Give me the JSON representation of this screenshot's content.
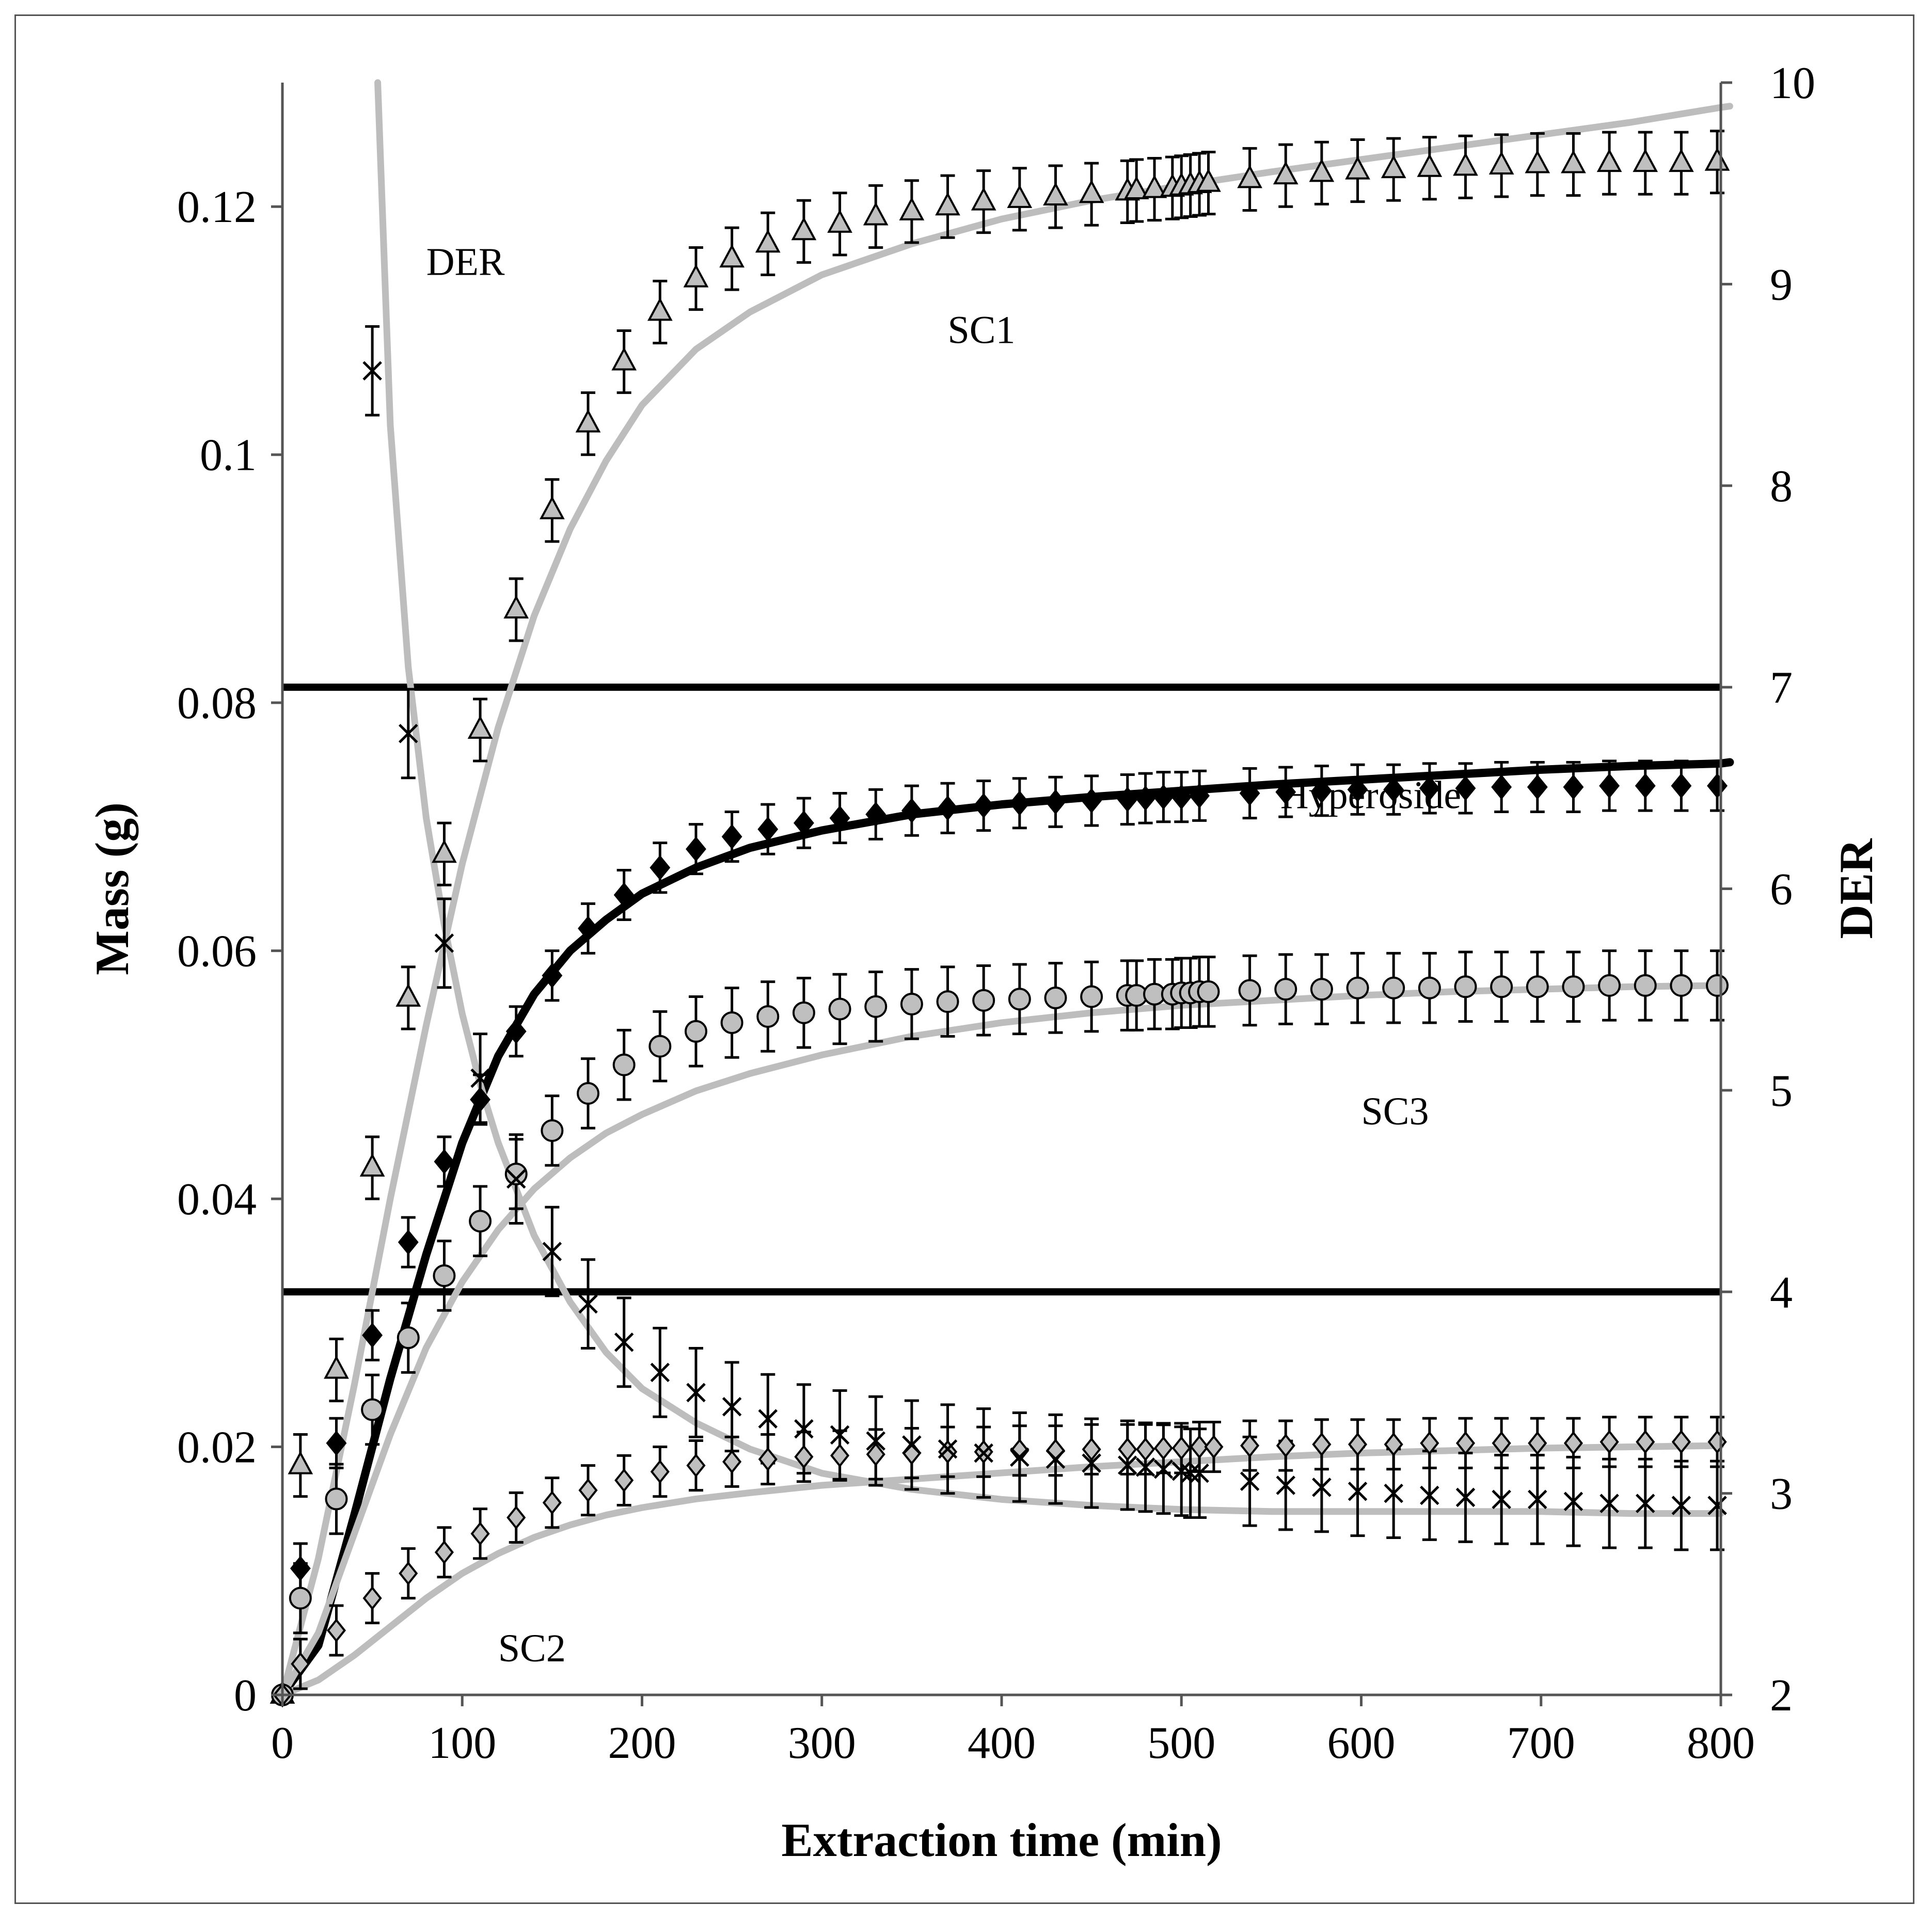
{
  "chart_data": {
    "type": "scatter",
    "title": "",
    "xlabel": "Extraction time (min)",
    "ylabel": "Mass (g)",
    "y2label": "DER",
    "xlim": [
      0,
      800
    ],
    "ylim": [
      0,
      0.13
    ],
    "y2lim": [
      2,
      10
    ],
    "x_ticks": [
      0,
      100,
      200,
      300,
      400,
      500,
      600,
      700,
      800
    ],
    "y_ticks": [
      0,
      0.02,
      0.04,
      0.06,
      0.08,
      0.1,
      0.12
    ],
    "y_tick_labels": [
      "0",
      "0.02",
      "0.04",
      "0.06",
      "0.08",
      "0.1",
      "0.12"
    ],
    "y2_ticks": [
      2,
      3,
      4,
      5,
      6,
      7,
      8,
      9,
      10
    ],
    "grid": false,
    "legend": "none",
    "colors": {
      "black": "#000000",
      "gray": "#bdbdbd",
      "marker_gray": "#bfbfbf",
      "dark_gray": "#555555"
    },
    "annotations": [
      {
        "text": "DER",
        "x": 80,
        "y": 0.1145
      },
      {
        "text": "SC1",
        "x": 370,
        "y": 0.109
      },
      {
        "text": "Hyperoside",
        "x": 555,
        "y": 0.0715
      },
      {
        "text": "SC3",
        "x": 600,
        "y": 0.046
      },
      {
        "text": "SC2",
        "x": 120,
        "y": 0.0027
      }
    ],
    "reference_lines": [
      {
        "axis": "y2",
        "value": 7
      },
      {
        "axis": "y2",
        "value": 4
      }
    ],
    "series": [
      {
        "name": "SC1",
        "marker": "triangle",
        "axis": "y",
        "x": [
          0,
          10,
          30,
          50,
          70,
          90,
          110,
          130,
          150,
          170,
          190,
          210,
          230,
          250,
          270,
          290,
          310,
          330,
          350,
          370,
          390,
          410,
          430,
          450,
          470,
          475,
          485,
          495,
          500,
          505,
          510,
          515,
          538,
          558,
          578,
          598,
          618,
          638,
          658,
          678,
          698,
          718,
          738,
          758,
          778,
          798
        ],
        "values": [
          0,
          0.0185,
          0.0262,
          0.0425,
          0.0562,
          0.0678,
          0.0778,
          0.0875,
          0.0955,
          0.1025,
          0.1075,
          0.1115,
          0.1142,
          0.1158,
          0.117,
          0.118,
          0.1186,
          0.1192,
          0.1196,
          0.12,
          0.1204,
          0.1206,
          0.1208,
          0.121,
          0.1212,
          0.1213,
          0.1214,
          0.1215,
          0.1216,
          0.1217,
          0.1218,
          0.1219,
          0.1222,
          0.1225,
          0.1227,
          0.1229,
          0.123,
          0.1231,
          0.1232,
          0.1233,
          0.1234,
          0.1234,
          0.1235,
          0.1235,
          0.1235,
          0.1236
        ],
        "error": 0.0025
      },
      {
        "name": "Hyperoside",
        "marker": "diamond-filled",
        "axis": "y",
        "x": [
          0,
          10,
          30,
          50,
          70,
          90,
          110,
          130,
          150,
          170,
          190,
          210,
          230,
          250,
          270,
          290,
          310,
          330,
          350,
          370,
          390,
          410,
          430,
          450,
          470,
          480,
          490,
          500,
          510,
          538,
          558,
          578,
          598,
          618,
          638,
          658,
          678,
          698,
          718,
          738,
          758,
          778,
          798
        ],
        "values": [
          0,
          0.0102,
          0.0203,
          0.029,
          0.0365,
          0.043,
          0.048,
          0.0535,
          0.058,
          0.0618,
          0.0645,
          0.0667,
          0.0682,
          0.0692,
          0.0698,
          0.0703,
          0.0707,
          0.071,
          0.0713,
          0.0715,
          0.0717,
          0.0719,
          0.072,
          0.0721,
          0.0722,
          0.0723,
          0.0724,
          0.0724,
          0.0725,
          0.0727,
          0.0728,
          0.0729,
          0.073,
          0.073,
          0.0731,
          0.0731,
          0.0732,
          0.0732,
          0.0732,
          0.0733,
          0.0733,
          0.0733,
          0.0733
        ],
        "error": 0.002
      },
      {
        "name": "SC3",
        "marker": "circle",
        "axis": "y",
        "x": [
          0,
          10,
          30,
          50,
          70,
          90,
          110,
          130,
          150,
          170,
          190,
          210,
          230,
          250,
          270,
          290,
          310,
          330,
          350,
          370,
          390,
          410,
          430,
          450,
          470,
          475,
          485,
          495,
          500,
          505,
          510,
          515,
          538,
          558,
          578,
          598,
          618,
          638,
          658,
          678,
          698,
          718,
          738,
          758,
          778,
          798
        ],
        "values": [
          0,
          0.0078,
          0.0158,
          0.023,
          0.0288,
          0.0338,
          0.0382,
          0.042,
          0.0455,
          0.0485,
          0.0508,
          0.0523,
          0.0535,
          0.0542,
          0.0547,
          0.055,
          0.0553,
          0.0555,
          0.0557,
          0.0559,
          0.056,
          0.0561,
          0.0562,
          0.0563,
          0.0564,
          0.0564,
          0.0565,
          0.0565,
          0.0566,
          0.0566,
          0.0567,
          0.0567,
          0.0568,
          0.0569,
          0.0569,
          0.057,
          0.057,
          0.057,
          0.0571,
          0.0571,
          0.0571,
          0.0571,
          0.0572,
          0.0572,
          0.0572,
          0.0572
        ],
        "error": 0.0028
      },
      {
        "name": "SC2",
        "marker": "diamond-open",
        "axis": "y",
        "x": [
          0,
          10,
          30,
          50,
          70,
          90,
          110,
          130,
          150,
          170,
          190,
          210,
          230,
          250,
          270,
          290,
          310,
          330,
          350,
          370,
          390,
          410,
          430,
          450,
          470,
          480,
          490,
          500,
          510,
          518,
          538,
          558,
          578,
          598,
          618,
          638,
          658,
          678,
          698,
          718,
          738,
          758,
          778,
          798
        ],
        "values": [
          0,
          0.0025,
          0.0052,
          0.0078,
          0.0098,
          0.0115,
          0.013,
          0.0143,
          0.0155,
          0.0165,
          0.0173,
          0.018,
          0.0185,
          0.0188,
          0.019,
          0.0192,
          0.0193,
          0.0194,
          0.0195,
          0.0196,
          0.0196,
          0.0197,
          0.0197,
          0.0198,
          0.0198,
          0.0198,
          0.0199,
          0.0199,
          0.02,
          0.02,
          0.0201,
          0.0201,
          0.0202,
          0.0202,
          0.0202,
          0.0203,
          0.0203,
          0.0203,
          0.0203,
          0.0203,
          0.0204,
          0.0204,
          0.0204,
          0.0204
        ],
        "error": 0.002
      },
      {
        "name": "DER",
        "marker": "x",
        "axis": "y2",
        "x": [
          50,
          70,
          90,
          110,
          130,
          150,
          170,
          190,
          210,
          230,
          250,
          270,
          290,
          310,
          330,
          350,
          370,
          390,
          410,
          430,
          450,
          470,
          480,
          490,
          500,
          505,
          510,
          538,
          558,
          578,
          598,
          618,
          638,
          658,
          678,
          698,
          718,
          738,
          758,
          778,
          798
        ],
        "values": [
          8.57,
          6.77,
          5.73,
          5.06,
          4.56,
          4.2,
          3.94,
          3.75,
          3.6,
          3.5,
          3.43,
          3.37,
          3.32,
          3.29,
          3.26,
          3.24,
          3.22,
          3.2,
          3.18,
          3.17,
          3.15,
          3.14,
          3.13,
          3.12,
          3.11,
          3.1,
          3.1,
          3.06,
          3.04,
          3.03,
          3.01,
          3.0,
          2.99,
          2.98,
          2.97,
          2.97,
          2.96,
          2.95,
          2.95,
          2.94,
          2.94
        ],
        "error": 0.22
      }
    ],
    "fits": [
      {
        "name": "SC1-fit",
        "axis": "y",
        "color": "gray",
        "x": [
          0,
          20,
          40,
          60,
          80,
          100,
          120,
          140,
          160,
          180,
          200,
          230,
          260,
          300,
          350,
          400,
          450,
          500,
          550,
          600,
          650,
          700,
          750,
          800,
          805
        ],
        "values": [
          0,
          0.011,
          0.025,
          0.04,
          0.054,
          0.067,
          0.078,
          0.087,
          0.094,
          0.0995,
          0.104,
          0.1085,
          0.1115,
          0.1145,
          0.117,
          0.119,
          0.1205,
          0.1217,
          0.1228,
          0.1238,
          0.1248,
          0.1258,
          0.1268,
          0.128,
          0.1281
        ]
      },
      {
        "name": "Hyperoside-fit",
        "axis": "y",
        "color": "black",
        "x": [
          0,
          20,
          40,
          60,
          80,
          100,
          120,
          140,
          160,
          180,
          200,
          230,
          260,
          300,
          350,
          400,
          450,
          500,
          550,
          600,
          650,
          700,
          750,
          800,
          805
        ],
        "values": [
          0,
          0.004,
          0.0145,
          0.0255,
          0.0355,
          0.0445,
          0.0515,
          0.0565,
          0.06,
          0.0625,
          0.0646,
          0.0667,
          0.0683,
          0.0697,
          0.071,
          0.0718,
          0.0724,
          0.0729,
          0.0734,
          0.0738,
          0.0742,
          0.0746,
          0.0749,
          0.0751,
          0.0752
        ]
      },
      {
        "name": "SC3-fit",
        "axis": "y",
        "color": "gray",
        "x": [
          0,
          20,
          40,
          60,
          80,
          100,
          120,
          140,
          160,
          180,
          200,
          230,
          260,
          300,
          350,
          400,
          450,
          500,
          550,
          600,
          650,
          700,
          750,
          800
        ],
        "values": [
          0,
          0.005,
          0.013,
          0.021,
          0.028,
          0.0333,
          0.0375,
          0.0408,
          0.0433,
          0.0453,
          0.0468,
          0.0487,
          0.0501,
          0.0516,
          0.0531,
          0.0542,
          0.055,
          0.0556,
          0.056,
          0.0564,
          0.0567,
          0.0569,
          0.0571,
          0.0572
        ]
      },
      {
        "name": "SC2-fit",
        "axis": "y",
        "color": "gray",
        "x": [
          0,
          20,
          40,
          60,
          80,
          100,
          120,
          140,
          160,
          180,
          200,
          230,
          260,
          300,
          350,
          400,
          450,
          500,
          550,
          600,
          650,
          700,
          750,
          800
        ],
        "values": [
          0,
          0.0012,
          0.0032,
          0.0055,
          0.0078,
          0.0098,
          0.0114,
          0.0127,
          0.0137,
          0.0145,
          0.0151,
          0.0158,
          0.0163,
          0.0169,
          0.0174,
          0.0179,
          0.0184,
          0.0188,
          0.0192,
          0.0195,
          0.0197,
          0.0199,
          0.02,
          0.0201
        ]
      },
      {
        "name": "DER-fit",
        "axis": "y2",
        "color": "gray",
        "x": [
          53,
          60,
          70,
          80,
          90,
          100,
          110,
          120,
          140,
          160,
          180,
          200,
          230,
          260,
          300,
          350,
          400,
          450,
          500,
          550,
          600,
          650,
          700,
          750,
          800
        ],
        "values": [
          10,
          8.3,
          7.1,
          6.35,
          5.82,
          5.38,
          5.03,
          4.74,
          4.28,
          3.95,
          3.7,
          3.52,
          3.35,
          3.22,
          3.1,
          3.02,
          2.97,
          2.94,
          2.92,
          2.91,
          2.91,
          2.91,
          2.91,
          2.9,
          2.9
        ]
      }
    ]
  }
}
